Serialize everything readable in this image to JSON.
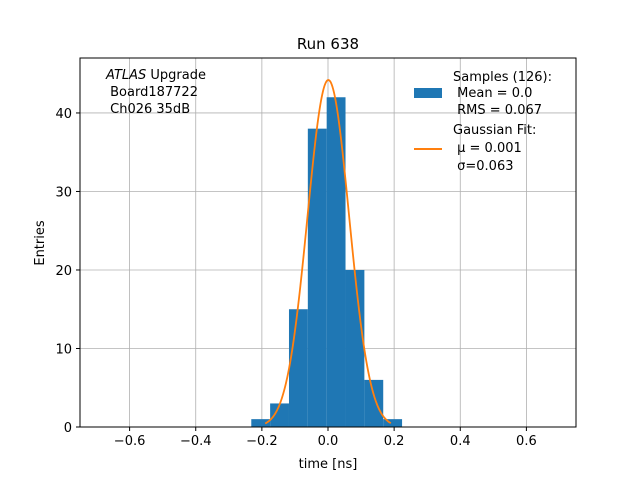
{
  "chart_data": {
    "type": "bar",
    "title": "Run 638",
    "xlabel": "time [ns]",
    "ylabel": "Entries",
    "xlim": [
      -0.75,
      0.75
    ],
    "ylim": [
      0,
      47
    ],
    "grid": true,
    "xticks": [
      -0.6,
      -0.4,
      -0.2,
      0.0,
      0.2,
      0.4,
      0.6
    ],
    "xtick_labels": [
      "−0.6",
      "−0.4",
      "−0.2",
      "0.0",
      "0.2",
      "0.4",
      "0.6"
    ],
    "yticks": [
      0,
      10,
      20,
      30,
      40
    ],
    "ytick_labels": [
      "0",
      "10",
      "20",
      "30",
      "40"
    ],
    "histogram": {
      "bin_edges": [
        -0.232,
        -0.175,
        -0.118,
        -0.061,
        -0.004,
        0.053,
        0.11,
        0.167,
        0.224
      ],
      "counts": [
        1,
        3,
        15,
        38,
        42,
        20,
        6,
        1
      ],
      "color": "#1f77b4"
    },
    "fit": {
      "type": "gaussian",
      "mu": 0.001,
      "sigma": 0.063,
      "amplitude": 44.2,
      "x_range": [
        -0.19,
        0.19
      ],
      "color": "#ff7f0e"
    },
    "legend": {
      "placement": "top-right",
      "entries": [
        {
          "kind": "bar",
          "lines": [
            "Samples (126):",
            " Mean = 0.0",
            " RMS = 0.067"
          ]
        },
        {
          "kind": "line",
          "lines": [
            "Gaussian Fit:",
            " μ = 0.001",
            " σ=0.063"
          ]
        }
      ]
    },
    "annotation": {
      "lines": [
        {
          "italic": "ATLAS",
          "rest": " Upgrade"
        },
        {
          "italic": "",
          "rest": " Board187722"
        },
        {
          "italic": "",
          "rest": " Ch026 35dB"
        }
      ]
    }
  }
}
